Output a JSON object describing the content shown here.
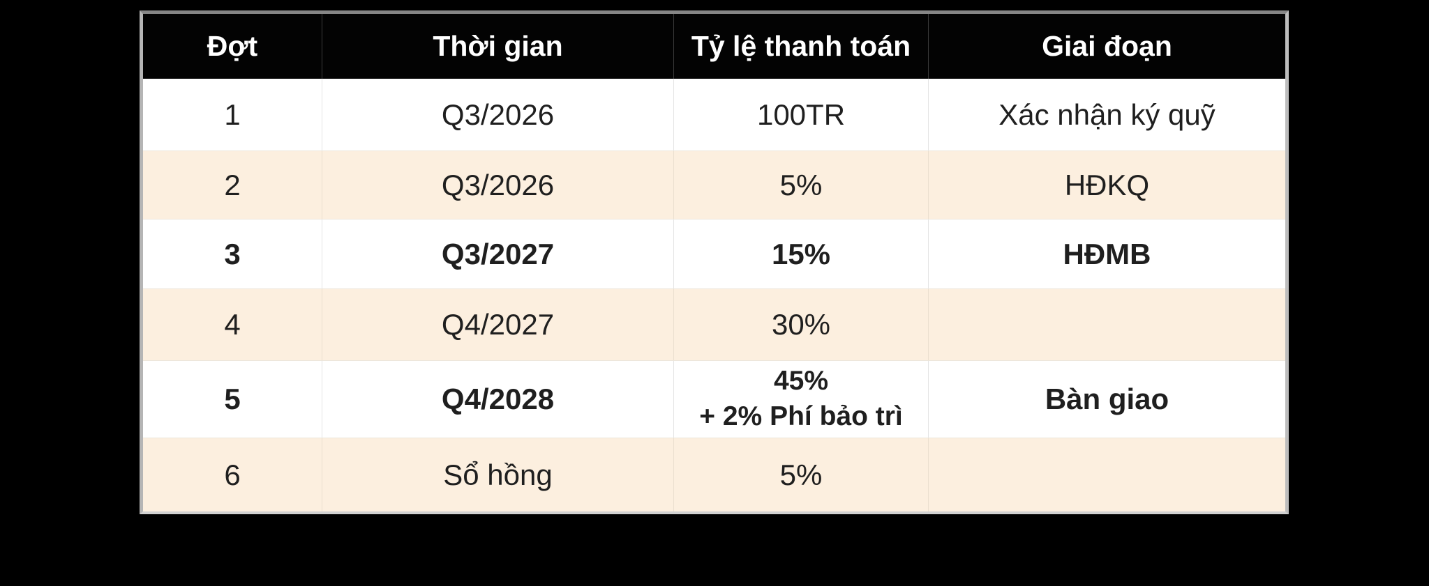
{
  "chart_data": {
    "type": "table",
    "title": "",
    "columns": [
      "Đợt",
      "Thời gian",
      "Tỷ lệ thanh toán",
      "Giai đoạn"
    ],
    "rows": [
      {
        "cells": [
          "1",
          "Q3/2026",
          "100TR",
          "Xác nhận ký quỹ"
        ],
        "bold": false
      },
      {
        "cells": [
          "2",
          "Q3/2026",
          "5%",
          "HĐKQ"
        ],
        "bold": false
      },
      {
        "cells": [
          "3",
          "Q3/2027",
          "15%",
          "HĐMB"
        ],
        "bold": true
      },
      {
        "cells": [
          "4",
          "Q4/2027",
          "30%",
          ""
        ],
        "bold": false
      },
      {
        "cells": [
          "5",
          "Q4/2028",
          "45%\n+ 2% Phí bảo trì",
          "Bàn giao"
        ],
        "bold": true
      },
      {
        "cells": [
          "6",
          "Sổ hồng",
          "5%",
          ""
        ],
        "bold": false
      }
    ],
    "layout": {
      "legend": "none",
      "grid": "on",
      "page_bg": "#000000",
      "header_bg": "#000000",
      "header_text_color": "#ffffff",
      "row_bg": "#ffffff",
      "stripe_bg": "#fcefdf",
      "body_text_color": "#1f1f1f",
      "frame_color": "#9a9a9a"
    }
  }
}
